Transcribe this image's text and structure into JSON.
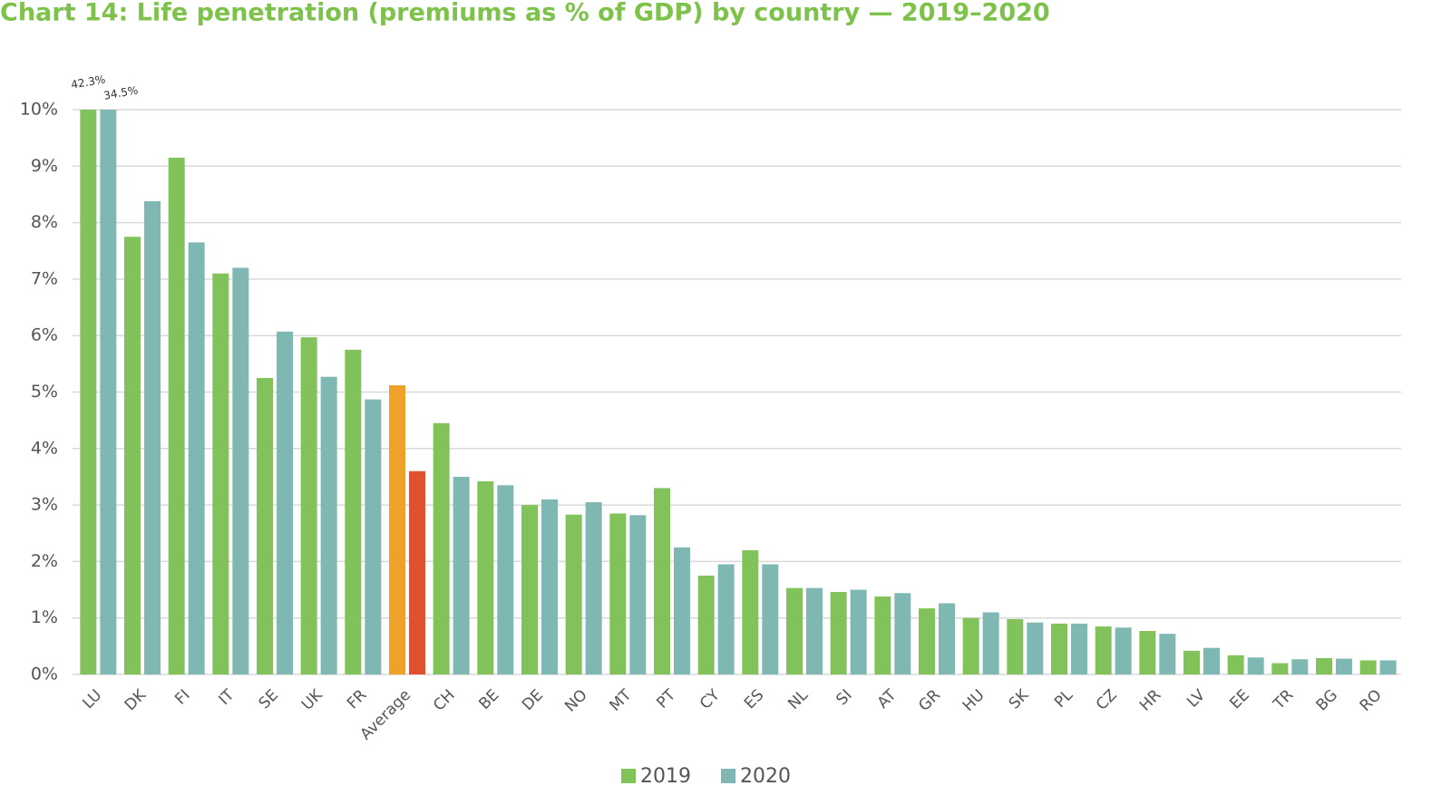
{
  "chart_data": {
    "type": "bar",
    "title": "Chart 14: Life penetration (premiums as % of GDP) by country — 2019–2020",
    "categories": [
      "LU",
      "DK",
      "FI",
      "IT",
      "SE",
      "UK",
      "FR",
      "Average",
      "CH",
      "BE",
      "DE",
      "NO",
      "MT",
      "PT",
      "CY",
      "ES",
      "NL",
      "SI",
      "AT",
      "GR",
      "HU",
      "SK",
      "PL",
      "CZ",
      "HR",
      "LV",
      "EE",
      "TR",
      "BG",
      "RO"
    ],
    "series": [
      {
        "name": "2019",
        "color": "#82c25a",
        "values": [
          42.3,
          7.75,
          9.15,
          7.1,
          5.25,
          5.97,
          5.75,
          5.12,
          4.45,
          3.42,
          3.0,
          2.83,
          2.85,
          3.3,
          1.75,
          2.2,
          1.53,
          1.46,
          1.38,
          1.17,
          1.0,
          0.98,
          0.9,
          0.85,
          0.77,
          0.42,
          0.34,
          0.2,
          0.29,
          0.25
        ],
        "value_labels": [
          "42.3%",
          null,
          null,
          null,
          null,
          null,
          null,
          null,
          null,
          null,
          null,
          null,
          null,
          null,
          null,
          null,
          null,
          null,
          null,
          null,
          null,
          null,
          null,
          null,
          null,
          null,
          null,
          null,
          null,
          null
        ],
        "point_colors": [
          null,
          null,
          null,
          null,
          null,
          null,
          null,
          "#eea22a",
          null,
          null,
          null,
          null,
          null,
          null,
          null,
          null,
          null,
          null,
          null,
          null,
          null,
          null,
          null,
          null,
          null,
          null,
          null,
          null,
          null,
          null
        ]
      },
      {
        "name": "2020",
        "color": "#7fb7b3",
        "values": [
          34.5,
          8.38,
          7.65,
          7.2,
          6.07,
          5.27,
          4.87,
          3.6,
          3.5,
          3.35,
          3.1,
          3.05,
          2.82,
          2.25,
          1.95,
          1.95,
          1.53,
          1.5,
          1.44,
          1.26,
          1.1,
          0.92,
          0.9,
          0.83,
          0.72,
          0.47,
          0.3,
          0.27,
          0.28,
          0.25
        ],
        "value_labels": [
          "34.5%",
          null,
          null,
          null,
          null,
          null,
          null,
          null,
          null,
          null,
          null,
          null,
          null,
          null,
          null,
          null,
          null,
          null,
          null,
          null,
          null,
          null,
          null,
          null,
          null,
          null,
          null,
          null,
          null,
          null
        ],
        "point_colors": [
          null,
          null,
          null,
          null,
          null,
          null,
          null,
          "#e2512f",
          null,
          null,
          null,
          null,
          null,
          null,
          null,
          null,
          null,
          null,
          null,
          null,
          null,
          null,
          null,
          null,
          null,
          null,
          null,
          null,
          null,
          null
        ]
      }
    ],
    "ylim": [
      0,
      10
    ],
    "yticks": [
      {
        "value": 0,
        "label": "0%"
      },
      {
        "value": 1,
        "label": "1%"
      },
      {
        "value": 2,
        "label": "2%"
      },
      {
        "value": 3,
        "label": "3%"
      },
      {
        "value": 4,
        "label": "4%"
      },
      {
        "value": 5,
        "label": "5%"
      },
      {
        "value": 6,
        "label": "6%"
      },
      {
        "value": 7,
        "label": "7%"
      },
      {
        "value": 8,
        "label": "8%"
      },
      {
        "value": 9,
        "label": "9%"
      },
      {
        "value": 10,
        "label": "10%"
      }
    ],
    "grid": true,
    "legend": "bottom"
  }
}
